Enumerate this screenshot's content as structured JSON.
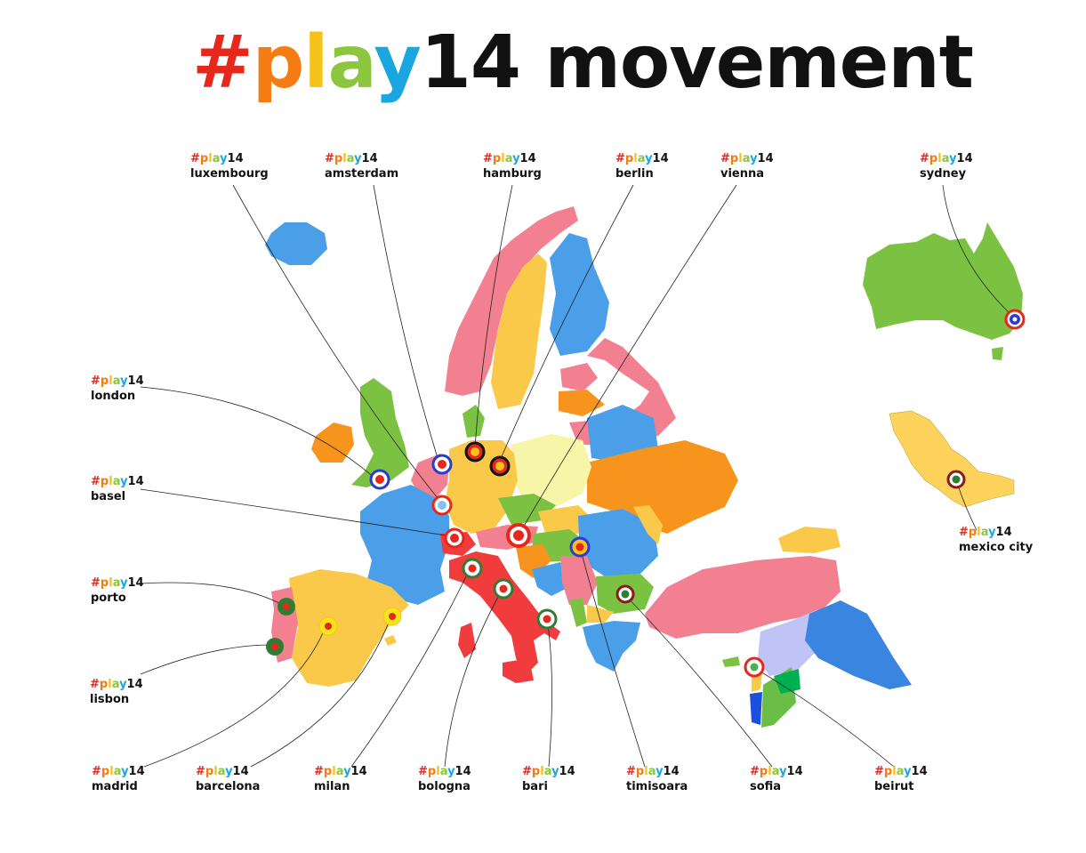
{
  "title": {
    "hash": "#",
    "p": "p",
    "l": "l",
    "a": "a",
    "y": "y",
    "num": "14",
    "word": " movement"
  },
  "tag": {
    "hash": "#",
    "p": "p",
    "l": "l",
    "a": "a",
    "y": "y",
    "num": "14"
  },
  "brand_colors": {
    "hash": "#e5271c",
    "p": "#f47c12",
    "l": "#f6c21a",
    "a": "#8cc63f",
    "y": "#1aa6e0",
    "text": "#111111"
  },
  "events": [
    {
      "city": "luxembourg",
      "pin": "red-lightblue"
    },
    {
      "city": "amsterdam",
      "pin": "blue-red"
    },
    {
      "city": "hamburg",
      "pin": "black-red-yellow"
    },
    {
      "city": "berlin",
      "pin": "black-red-yellow"
    },
    {
      "city": "vienna",
      "pin": "red-white"
    },
    {
      "city": "sydney",
      "pin": "red-blue-star"
    },
    {
      "city": "london",
      "pin": "blue-red"
    },
    {
      "city": "basel",
      "pin": "red-white"
    },
    {
      "city": "porto",
      "pin": "green-red"
    },
    {
      "city": "lisbon",
      "pin": "green-red"
    },
    {
      "city": "mexico city",
      "pin": "red-green"
    },
    {
      "city": "madrid",
      "pin": "yellow-red"
    },
    {
      "city": "barcelona",
      "pin": "yellow-red"
    },
    {
      "city": "milan",
      "pin": "red-green"
    },
    {
      "city": "bologna",
      "pin": "red-green"
    },
    {
      "city": "bari",
      "pin": "red-green"
    },
    {
      "city": "timisoara",
      "pin": "blue-yellow-red"
    },
    {
      "city": "sofia",
      "pin": "red-green"
    },
    {
      "city": "beirut",
      "pin": "red-green"
    }
  ]
}
